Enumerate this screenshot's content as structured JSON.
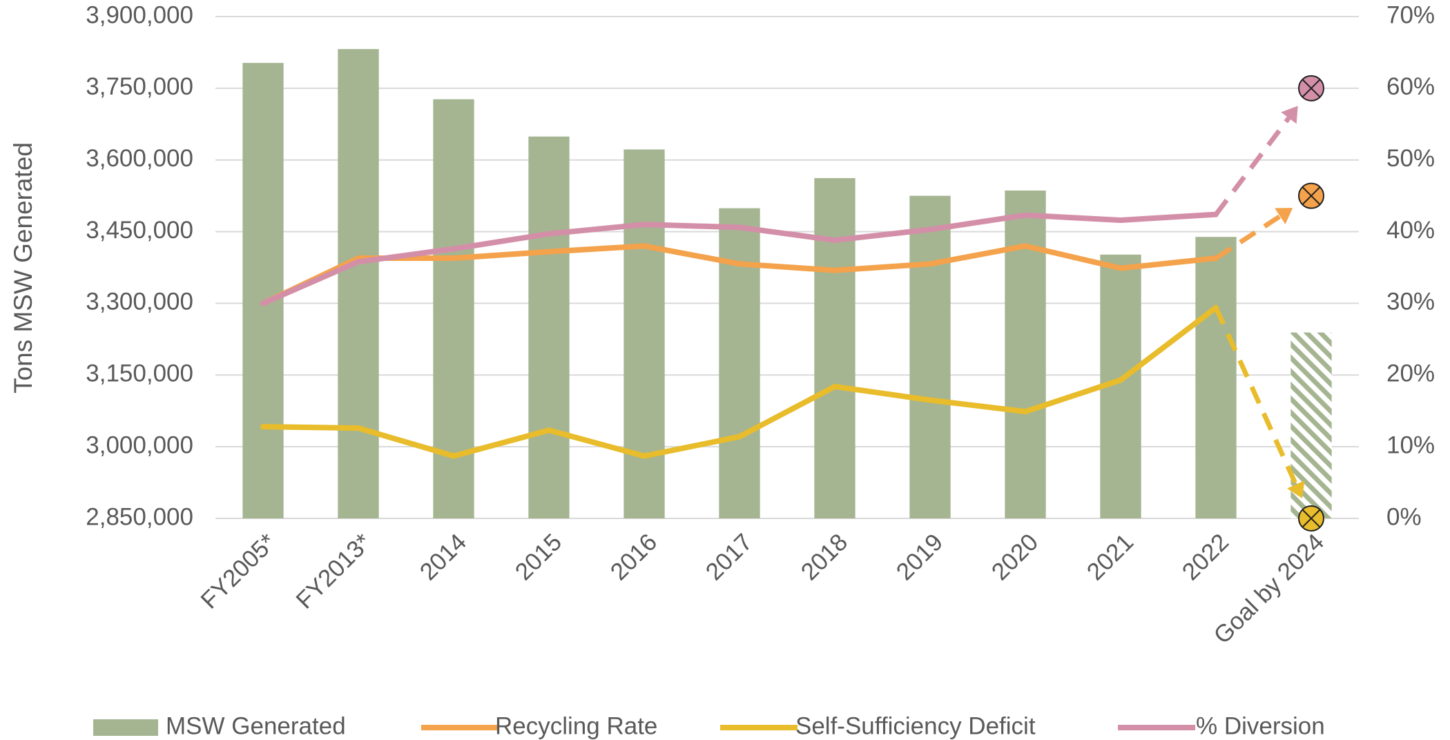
{
  "chart_data": {
    "type": "bar_line",
    "y_axis_label": "Tons MSW Generated",
    "categories": [
      "FY2005*",
      "FY2013*",
      "2014",
      "2015",
      "2016",
      "2017",
      "2018",
      "2019",
      "2020",
      "2021",
      "2022",
      "Goal by 2024"
    ],
    "series": [
      {
        "name": "MSW Generated",
        "type": "bar",
        "color": "#a5b592",
        "hatched_last": true,
        "values": [
          3803000,
          3832000,
          3727000,
          3649000,
          3622000,
          3499000,
          3562000,
          3525000,
          3536000,
          3402000,
          3439000,
          3239000
        ]
      },
      {
        "name": "Recycling Rate",
        "type": "line",
        "axis": "y2",
        "color": "#f4a24b",
        "dashed_last": true,
        "values": [
          30,
          36.3,
          36.3,
          37.2,
          38,
          35.5,
          34.6,
          35.5,
          38,
          34.9,
          36.3,
          45
        ]
      },
      {
        "name": "Self-Sufficiency Deficit",
        "type": "line",
        "axis": "y2",
        "color": "#e8bc2b",
        "dashed_last": true,
        "values": [
          12.8,
          12.6,
          8.7,
          12.3,
          8.7,
          11.4,
          18.4,
          16.5,
          14.9,
          19.3,
          29.4,
          0
        ]
      },
      {
        "name": "% Diversion",
        "type": "line",
        "axis": "y2",
        "color": "#d48fa8",
        "dashed_last": true,
        "values": [
          30,
          35.8,
          37.6,
          39.7,
          41,
          40.6,
          38.8,
          40.3,
          42.3,
          41.6,
          42.4,
          60
        ]
      }
    ],
    "ylim": [
      2850000,
      3900000
    ],
    "yticks": [
      {
        "value": 2850000,
        "label": "2,850,000"
      },
      {
        "value": 3000000,
        "label": "3,000,000"
      },
      {
        "value": 3150000,
        "label": "3,150,000"
      },
      {
        "value": 3300000,
        "label": "3,300,000"
      },
      {
        "value": 3450000,
        "label": "3,450,000"
      },
      {
        "value": 3600000,
        "label": "3,600,000"
      },
      {
        "value": 3750000,
        "label": "3,750,000"
      },
      {
        "value": 3900000,
        "label": "3,900,000"
      }
    ],
    "y2lim": [
      0,
      70
    ],
    "y2ticks": [
      {
        "value": 0,
        "label": "0%"
      },
      {
        "value": 10,
        "label": "10%"
      },
      {
        "value": 20,
        "label": "20%"
      },
      {
        "value": 30,
        "label": "30%"
      },
      {
        "value": 40,
        "label": "40%"
      },
      {
        "value": 50,
        "label": "50%"
      },
      {
        "value": 60,
        "label": "60%"
      },
      {
        "value": 70,
        "label": "70%"
      }
    ],
    "grid": true,
    "legend": "bottom"
  }
}
